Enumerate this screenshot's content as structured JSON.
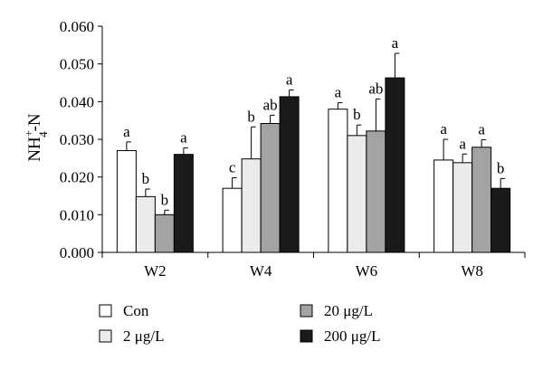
{
  "chart_data": {
    "type": "bar",
    "ylabel_main": "NH",
    "ylabel_sub": "4",
    "ylabel_sup": "+",
    "ylabel_tail": "-N",
    "categories": [
      "W2",
      "W4",
      "W6",
      "W8"
    ],
    "ylim": [
      0,
      0.06
    ],
    "yticks": [
      "0.000",
      "0.010",
      "0.020",
      "0.030",
      "0.040",
      "0.050",
      "0.060"
    ],
    "ytick_values": [
      0,
      0.01,
      0.02,
      0.03,
      0.04,
      0.05,
      0.06
    ],
    "grid": false,
    "legend_position": "bottom",
    "series": [
      {
        "name": "Con",
        "color": "#ffffff",
        "values": [
          0.027,
          0.017,
          0.038,
          0.0245
        ],
        "errors": [
          0.0023,
          0.0028,
          0.0017,
          0.0055
        ],
        "letters": [
          "a",
          "c",
          "a",
          "a"
        ]
      },
      {
        "name": "2 μg/L",
        "color": "#ebebeb",
        "values": [
          0.0148,
          0.0248,
          0.031,
          0.0238
        ],
        "errors": [
          0.002,
          0.0085,
          0.0028,
          0.0023
        ],
        "letters": [
          "b",
          "b",
          "b",
          "a"
        ]
      },
      {
        "name": "20 μg/L",
        "color": "#a3a3a3",
        "values": [
          0.01,
          0.0342,
          0.0322,
          0.0279
        ],
        "errors": [
          0.0012,
          0.0022,
          0.0085,
          0.002
        ],
        "letters": [
          "b",
          "ab",
          "ab",
          "a"
        ]
      },
      {
        "name": "200 μg/L",
        "color": "#1a1a1a",
        "values": [
          0.026,
          0.0413,
          0.0463,
          0.017
        ],
        "errors": [
          0.0017,
          0.0018,
          0.0065,
          0.0026
        ],
        "letters": [
          "a",
          "a",
          "a",
          "b"
        ]
      }
    ]
  }
}
